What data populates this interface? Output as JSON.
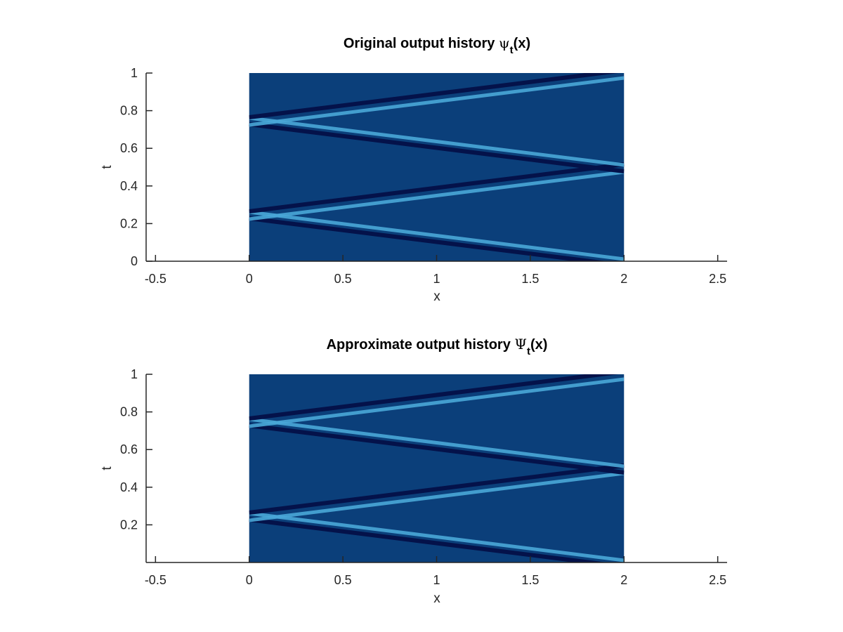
{
  "colors": {
    "background": "#0b3f7a",
    "dark_trace": "#04124a",
    "light_trace": "#4aa8d8",
    "axis": "#262626"
  },
  "chart_data": [
    {
      "type": "heatmap",
      "title": "Original output history ψt(x)",
      "title_parts": {
        "before": "Original output history ",
        "symbol": "ψ",
        "sub": "t",
        "after": "(x)"
      },
      "xlabel": "x",
      "ylabel": "t",
      "xlim": [
        -0.55,
        2.55
      ],
      "ylim": [
        0,
        1
      ],
      "xticks": [
        -0.5,
        0,
        0.5,
        1,
        1.5,
        2,
        2.5
      ],
      "xtick_labels": [
        "-0.5",
        "0",
        "0.5",
        "1",
        "1.5",
        "2",
        "2.5"
      ],
      "yticks": [
        0,
        0.2,
        0.4,
        0.6,
        0.8,
        1
      ],
      "ytick_labels": [
        "0",
        "0.2",
        "0.4",
        "0.6",
        "0.8",
        "1"
      ],
      "extent": {
        "x": [
          0,
          2
        ],
        "t": [
          0,
          1
        ]
      },
      "bands": [
        {
          "from": [
            0,
            0.25
          ],
          "to": [
            2,
            0.0
          ]
        },
        {
          "from": [
            0,
            0.25
          ],
          "to": [
            2,
            0.5
          ]
        },
        {
          "from": [
            0,
            0.75
          ],
          "to": [
            2,
            0.5
          ]
        },
        {
          "from": [
            0,
            0.75
          ],
          "to": [
            2,
            1.0
          ]
        }
      ]
    },
    {
      "type": "heatmap",
      "title": "Approximate output history Ψt(x)",
      "title_parts": {
        "before": "Approximate output history ",
        "symbol": "Ψ",
        "sub": "t",
        "after": "(x)"
      },
      "xlabel": "x",
      "ylabel": "t",
      "xlim": [
        -0.55,
        2.55
      ],
      "ylim": [
        0,
        1
      ],
      "xticks": [
        -0.5,
        0,
        0.5,
        1,
        1.5,
        2,
        2.5
      ],
      "xtick_labels": [
        "-0.5",
        "0",
        "0.5",
        "1",
        "1.5",
        "2",
        "2.5"
      ],
      "yticks": [
        0.2,
        0.4,
        0.6,
        0.8,
        1
      ],
      "ytick_labels": [
        "0.2",
        "0.4",
        "0.6",
        "0.8",
        "1"
      ],
      "extent": {
        "x": [
          0,
          2
        ],
        "t": [
          0,
          1
        ]
      },
      "bands": [
        {
          "from": [
            0,
            0.25
          ],
          "to": [
            2,
            0.0
          ]
        },
        {
          "from": [
            0,
            0.25
          ],
          "to": [
            2,
            0.5
          ]
        },
        {
          "from": [
            0,
            0.75
          ],
          "to": [
            2,
            0.5
          ]
        },
        {
          "from": [
            0,
            0.75
          ],
          "to": [
            2,
            1.0
          ]
        }
      ]
    }
  ]
}
